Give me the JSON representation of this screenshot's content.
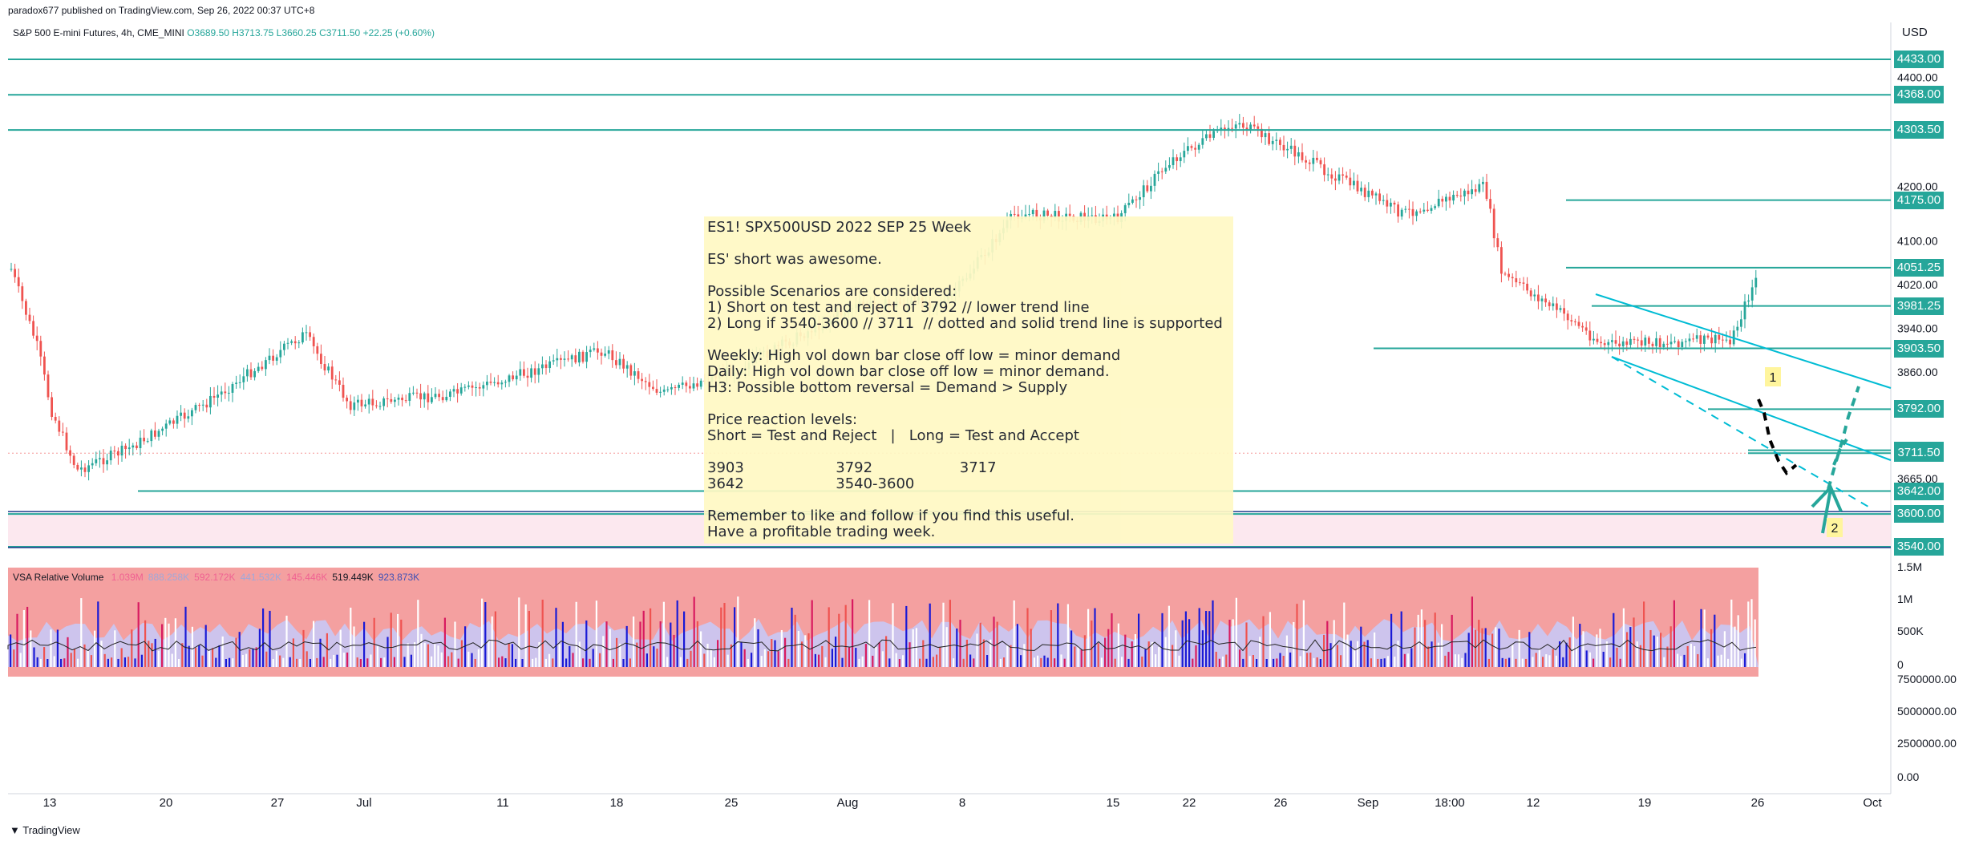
{
  "header": {
    "published": "paradox677 published on TradingView.com, Sep 26, 2022 00:37 UTC+8",
    "symbol": "S&P 500 E-mini Futures, 4h, CME_MINI",
    "ohlc": {
      "o": "O3689.50",
      "h": "H3713.75",
      "l": "L3660.25",
      "c": "C3711.50",
      "chg": "+22.25 (+0.60%)"
    }
  },
  "axis_title": "USD",
  "price_axis_labels": [
    "4400.00",
    "4200.00",
    "4100.00",
    "4020.00",
    "3940.00",
    "3860.00",
    "3665.00"
  ],
  "levels": [
    {
      "label": "4433.00",
      "price": 4433.0
    },
    {
      "label": "4368.00",
      "price": 4368.0
    },
    {
      "label": "4303.50",
      "price": 4303.5
    },
    {
      "label": "4175.00",
      "price": 4175.0
    },
    {
      "label": "4051.25",
      "price": 4051.25
    },
    {
      "label": "3981.25",
      "price": 3981.25
    },
    {
      "label": "3903.50",
      "price": 3903.5
    },
    {
      "label": "3792.00",
      "price": 3792.0
    },
    {
      "label": "3716.75",
      "price": 3716.75
    },
    {
      "label": "3711.50",
      "price": 3711.5
    },
    {
      "label": "3642.00",
      "price": 3642.0
    },
    {
      "label": "3600.00",
      "price": 3600.0
    },
    {
      "label": "3540.00",
      "price": 3540.0
    }
  ],
  "note": {
    "lines": [
      "ES1! SPX500USD 2022 SEP 25 Week",
      "",
      "ES' short was awesome.",
      "",
      "Possible Scenarios are considered:",
      "1) Short on test and reject of 3792 // lower trend line",
      "2) Long if 3540-3600 // 3711  // dotted and solid trend line is supported",
      "",
      "Weekly: High vol down bar close off low = minor demand",
      "Daily: High vol down bar close off low = minor demand.",
      "H3: Possible bottom reversal = Demand > Supply",
      "",
      "Price reaction levels:",
      "Short = Test and Reject   |   Long = Test and Accept",
      "",
      "3903                    3792                   3717",
      "3642                    3540-3600",
      "",
      "Remember to like and follow if you find this useful.",
      "Have a profitable trading week."
    ]
  },
  "scenario_labels": [
    "1",
    "2"
  ],
  "volume_panel": {
    "title": "VSA Relative Volume",
    "values": [
      "1.039M",
      "888.258K",
      "592.172K",
      "441.532K",
      "145.446K",
      "519.449K",
      "923.873K"
    ],
    "value_colors": [
      "#f06292",
      "#9fa8da",
      "#f06292",
      "#9fa8da",
      "#f06292",
      "#131722",
      "#3f51b5"
    ],
    "axis_labels": [
      "1.5M",
      "1M",
      "500K",
      "0"
    ],
    "lower_axis_labels": [
      "7500000.00",
      "5000000.00",
      "2500000.00",
      "0.00"
    ]
  },
  "time_axis": [
    "13",
    "20",
    "27",
    "Jul",
    "11",
    "18",
    "25",
    "Aug",
    "8",
    "15",
    "22",
    "26",
    "Sep",
    "18:00",
    "12",
    "19",
    "26",
    "Oct"
  ],
  "footer": {
    "brand": "TradingView"
  },
  "colors": {
    "level": "#26a69a",
    "up": "#26a69a",
    "down": "#ef5350",
    "trend": "#00bcd4",
    "note_bg": "#fff9c4",
    "zone": "#fce4ec"
  },
  "chart_data": {
    "type": "candlestick",
    "title": "S&P 500 E-mini Futures, 4h, CME_MINI",
    "ylabel": "USD",
    "ylim": [
      3510,
      4450
    ],
    "x": [
      "Jun 13",
      "Jun 20",
      "Jun 27",
      "Jul",
      "Jul 11",
      "Jul 18",
      "Jul 25",
      "Aug",
      "Aug 8",
      "Aug 15",
      "Aug 22",
      "Aug 26",
      "Sep",
      "Sep 12",
      "Sep 19",
      "Sep 26",
      "Oct"
    ],
    "close_path": [
      {
        "x": "Jun 10",
        "y": 4110
      },
      {
        "x": "Jun 13",
        "y": 3900
      },
      {
        "x": "Jun 14",
        "y": 3790
      },
      {
        "x": "Jun 16",
        "y": 3680
      },
      {
        "x": "Jun 20",
        "y": 3720
      },
      {
        "x": "Jun 23",
        "y": 3800
      },
      {
        "x": "Jun 27",
        "y": 3930
      },
      {
        "x": "Jun 30",
        "y": 3800
      },
      {
        "x": "Jul 6",
        "y": 3820
      },
      {
        "x": "Jul 11",
        "y": 3900
      },
      {
        "x": "Jul 14",
        "y": 3820
      },
      {
        "x": "Jul 18",
        "y": 3870
      },
      {
        "x": "Jul 22",
        "y": 3980
      },
      {
        "x": "Jul 26",
        "y": 3990
      },
      {
        "x": "Aug 1",
        "y": 4150
      },
      {
        "x": "Aug 8",
        "y": 4140
      },
      {
        "x": "Aug 12",
        "y": 4250
      },
      {
        "x": "Aug 16",
        "y": 4318
      },
      {
        "x": "Aug 19",
        "y": 4250
      },
      {
        "x": "Aug 23",
        "y": 4150
      },
      {
        "x": "Aug 26",
        "y": 4200
      },
      {
        "x": "Aug 27",
        "y": 4040
      },
      {
        "x": "Aug 31",
        "y": 3960
      },
      {
        "x": "Sep 2",
        "y": 3910
      },
      {
        "x": "Sep 7",
        "y": 3920
      },
      {
        "x": "Sep 12",
        "y": 4150
      },
      {
        "x": "Sep 13",
        "y": 3960
      },
      {
        "x": "Sep 15",
        "y": 3900
      },
      {
        "x": "Sep 19",
        "y": 3870
      },
      {
        "x": "Sep 22",
        "y": 3780
      },
      {
        "x": "Sep 23",
        "y": 3700
      },
      {
        "x": "Sep 26",
        "y": 3711.5
      }
    ],
    "horizontal_levels": [
      4433.0,
      4368.0,
      4303.5,
      4175.0,
      4051.25,
      3981.25,
      3903.5,
      3792.0,
      3716.75,
      3711.5,
      3642.0,
      3600.0,
      3540.0
    ],
    "zone": [
      3540,
      3600
    ],
    "volume": {
      "ylim": [
        0,
        1500000
      ],
      "title": "VSA Relative Volume"
    }
  }
}
